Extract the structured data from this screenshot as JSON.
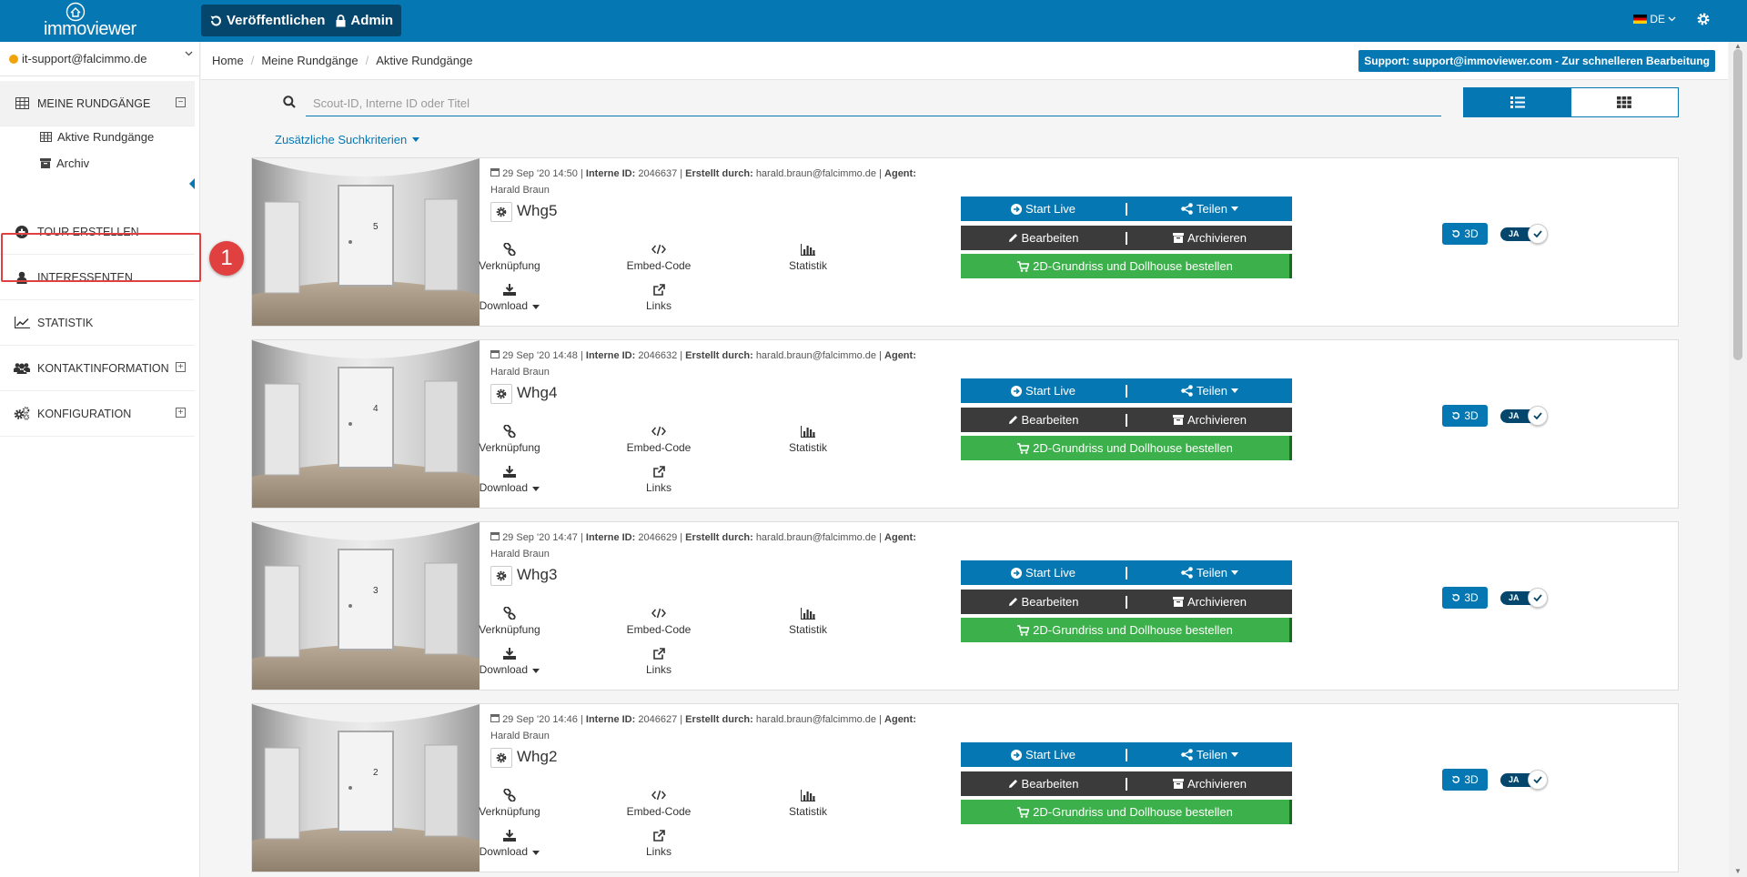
{
  "app": {
    "logo_text": "immoviewer"
  },
  "topbar": {
    "publish_label": "Veröffentlichen",
    "admin_label": "Admin",
    "language": "DE"
  },
  "sidebar": {
    "user_email": "it-support@falcimmo.de",
    "items": [
      {
        "label": "MEINE RUNDGÄNGE"
      },
      {
        "label": "TOUR ERSTELLEN"
      },
      {
        "label": "INTERESSENTEN"
      },
      {
        "label": "STATISTIK"
      },
      {
        "label": "KONTAKTINFORMATION"
      },
      {
        "label": "KONFIGURATION"
      }
    ],
    "subitems": [
      {
        "label": "Aktive Rundgänge"
      },
      {
        "label": "Archiv"
      }
    ],
    "step_badge": "1"
  },
  "breadcrumb": {
    "home": "Home",
    "level1": "Meine Rundgänge",
    "level2": "Aktive Rundgänge"
  },
  "support": {
    "label": "Support: support@immoviewer.com - Zur schnelleren Bearbeitung"
  },
  "search": {
    "placeholder": "Scout-ID, Interne ID oder Titel",
    "value": "",
    "more_criteria": "Zusätzliche Suchkriterien"
  },
  "labels": {
    "internal_id": "Interne ID:",
    "created_by": "Erstellt durch:",
    "agent": "Agent:",
    "link": "Verknüpfung",
    "embed": "Embed-Code",
    "stats": "Statistik",
    "download": "Download",
    "links": "Links",
    "start_live": "Start Live",
    "share": "Teilen",
    "edit": "Bearbeiten",
    "archive": "Archivieren",
    "order": "2D-Grundriss und Dollhouse bestellen",
    "btn_3d": "3D",
    "toggle_on": "JA"
  },
  "tours": [
    {
      "date": "29 Sep '20 14:50",
      "internal_id": "2046637",
      "creator": "harald.braun@falcimmo.de",
      "agent": "Harald Braun",
      "title": "Whg5",
      "door_label": "5"
    },
    {
      "date": "29 Sep '20 14:48",
      "internal_id": "2046632",
      "creator": "harald.braun@falcimmo.de",
      "agent": "Harald Braun",
      "title": "Whg4",
      "door_label": "4"
    },
    {
      "date": "29 Sep '20 14:47",
      "internal_id": "2046629",
      "creator": "harald.braun@falcimmo.de",
      "agent": "Harald Braun",
      "title": "Whg3",
      "door_label": "3"
    },
    {
      "date": "29 Sep '20 14:46",
      "internal_id": "2046627",
      "creator": "harald.braun@falcimmo.de",
      "agent": "Harald Braun",
      "title": "Whg2",
      "door_label": "2"
    }
  ],
  "colors": {
    "primary": "#0578b4",
    "dark": "#3b3b3b",
    "green": "#3cb04a",
    "highlight": "#e04040"
  }
}
